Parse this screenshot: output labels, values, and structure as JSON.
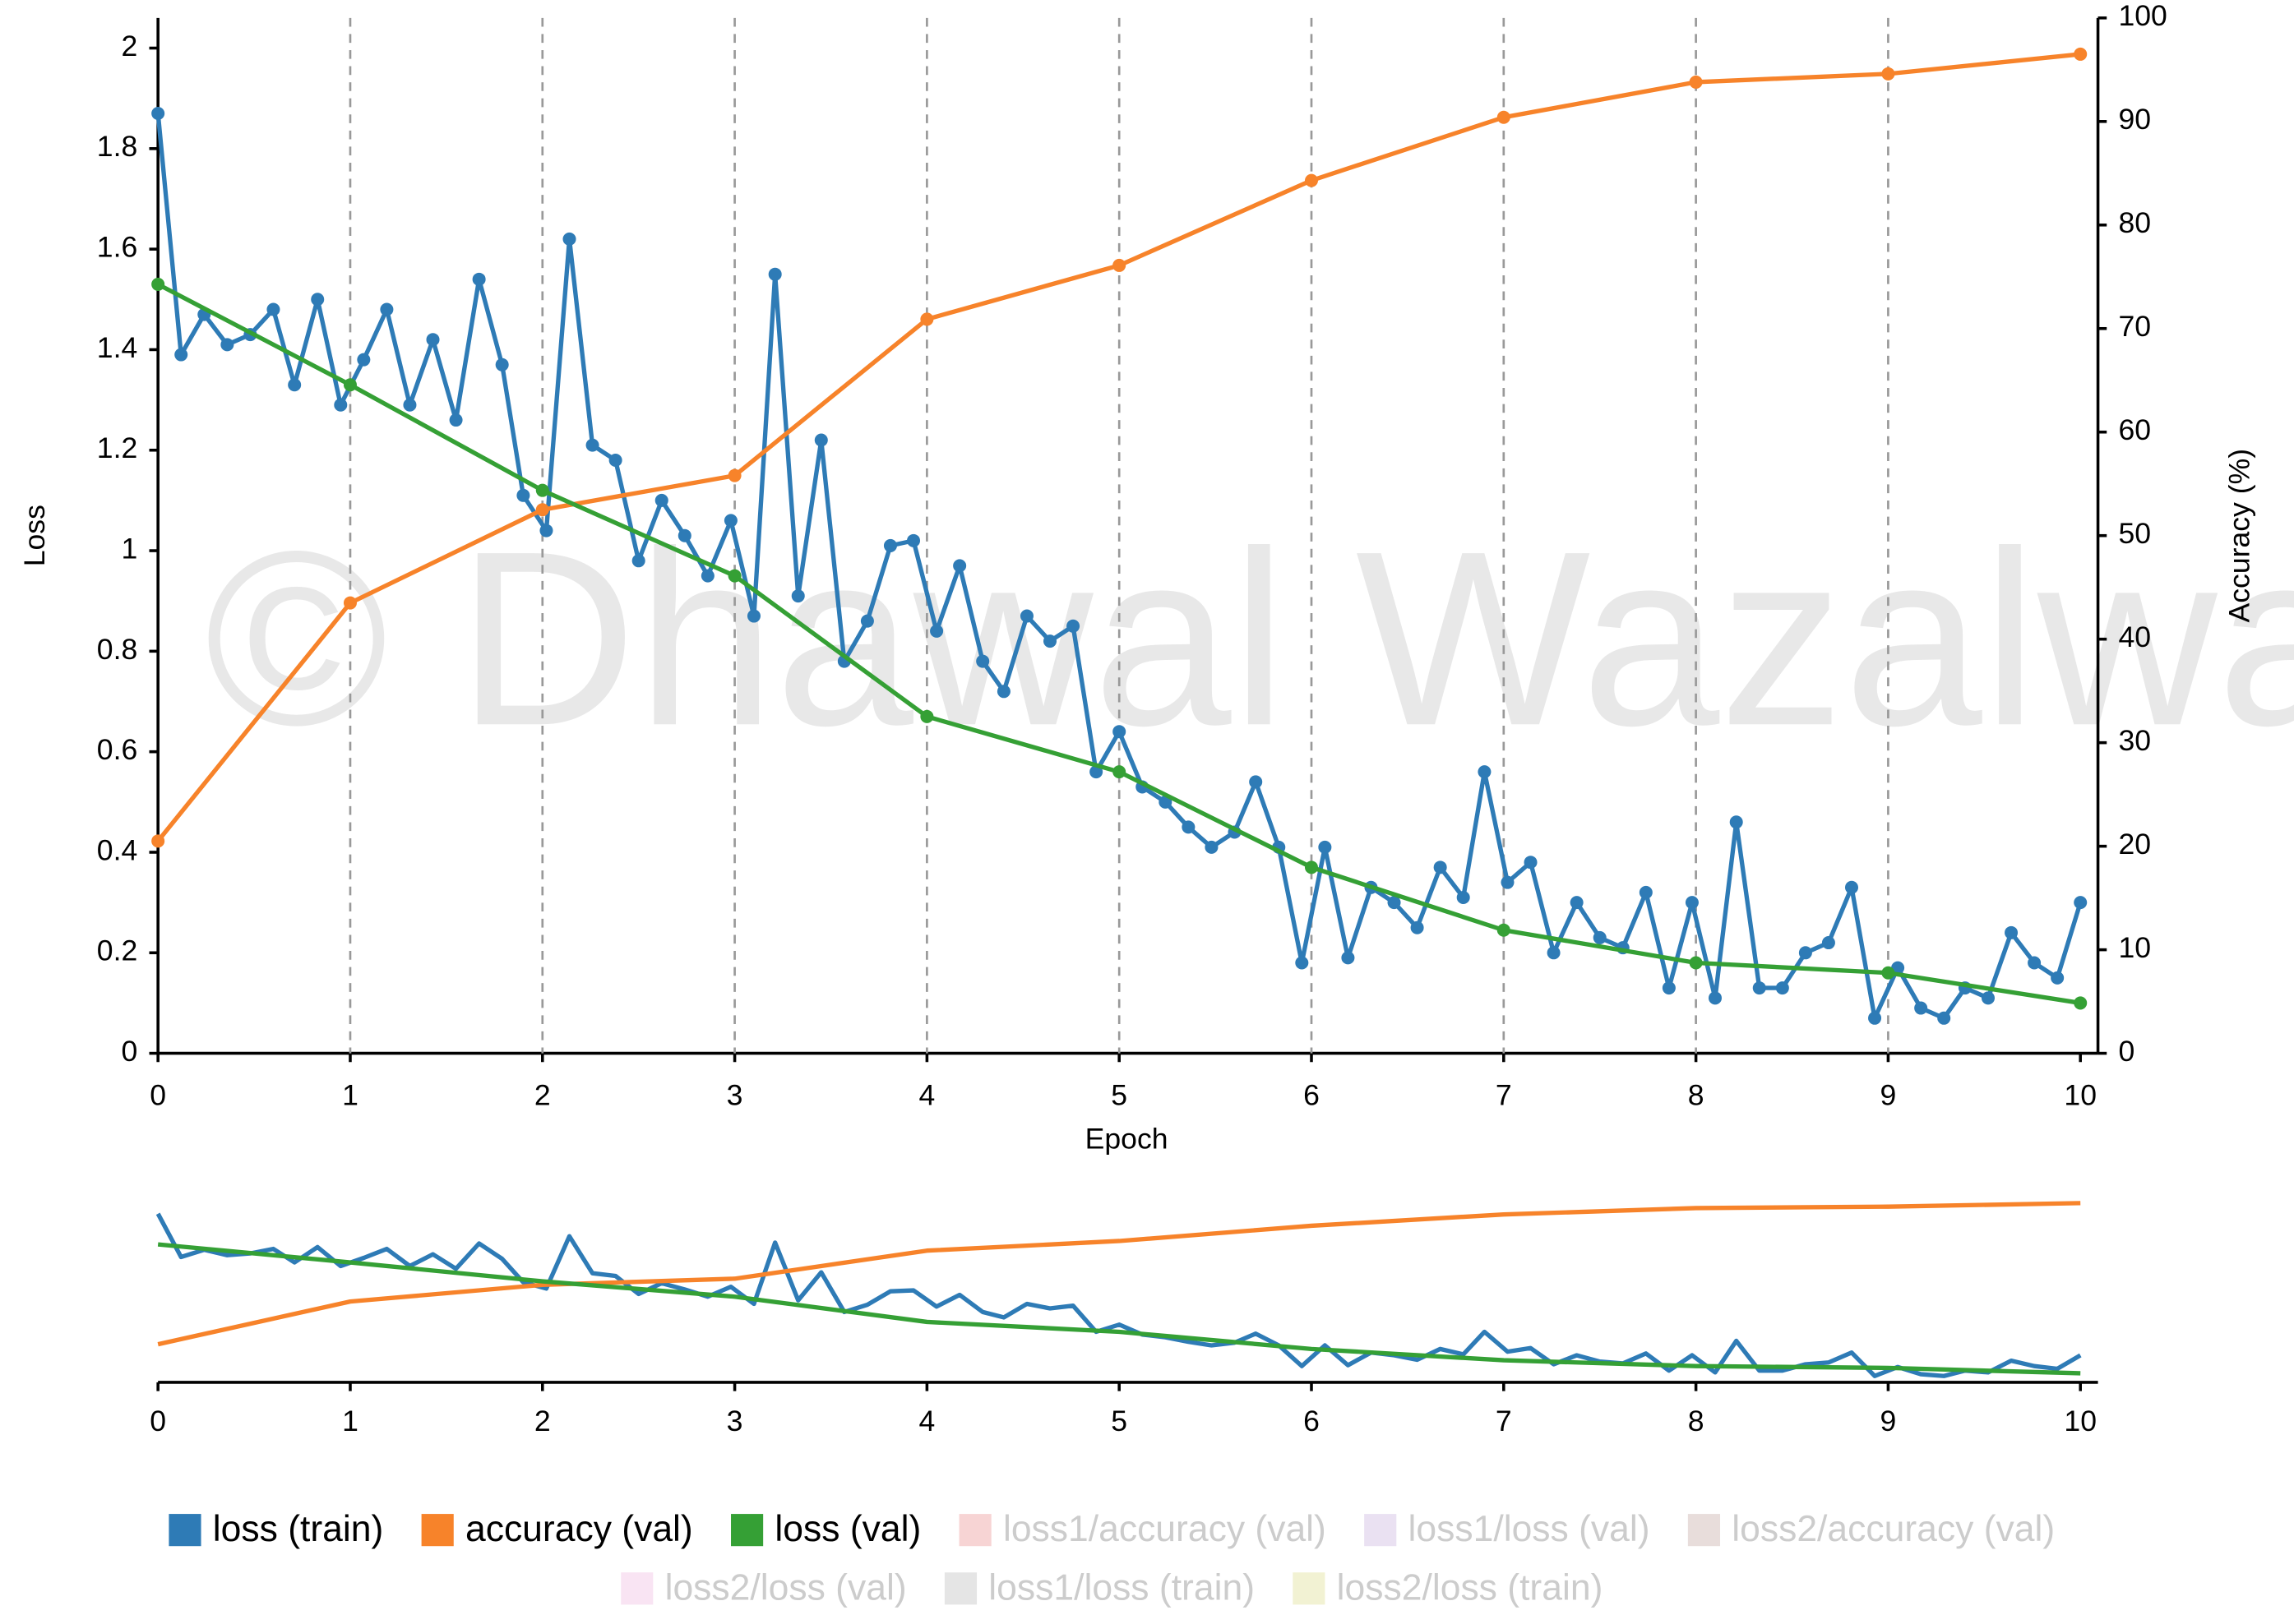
{
  "chart_data": {
    "type": "line",
    "watermark": "© Dhawal Wazalwar",
    "xlabel": "Epoch",
    "ylabel": "Loss",
    "y2label": "Accuracy (%)",
    "x": [
      0,
      1,
      2,
      3,
      4,
      5,
      6,
      7,
      8,
      9,
      10
    ],
    "xlim": [
      0,
      10
    ],
    "xticks": [
      0,
      1,
      2,
      3,
      4,
      5,
      6,
      7,
      8,
      9,
      10
    ],
    "ylim": [
      0,
      2.06
    ],
    "yticks": [
      0,
      0.2,
      0.4,
      0.6,
      0.8,
      1,
      1.2,
      1.4,
      1.6,
      1.8,
      2
    ],
    "y2lim": [
      0,
      100
    ],
    "y2ticks": [
      0,
      10,
      20,
      30,
      40,
      50,
      60,
      70,
      80,
      90,
      100
    ],
    "grid": "x",
    "series": [
      {
        "name": "loss (train)",
        "color": "#2e7bb6",
        "x": [
          0,
          0.12,
          0.24,
          0.36,
          0.48,
          0.6,
          0.71,
          0.83,
          0.95,
          1.07,
          1.19,
          1.31,
          1.43,
          1.55,
          1.67,
          1.79,
          1.9,
          2.02,
          2.14,
          2.26,
          2.38,
          2.5,
          2.62,
          2.74,
          2.86,
          2.98,
          3.1,
          3.21,
          3.33,
          3.45,
          3.57,
          3.69,
          3.81,
          3.93,
          4.05,
          4.17,
          4.29,
          4.4,
          4.52,
          4.64,
          4.76,
          4.88,
          5,
          5.12,
          5.24,
          5.36,
          5.48,
          5.6,
          5.71,
          5.83,
          5.95,
          6.07,
          6.19,
          6.31,
          6.43,
          6.55,
          6.67,
          6.79,
          6.9,
          7.02,
          7.14,
          7.26,
          7.38,
          7.5,
          7.62,
          7.74,
          7.86,
          7.98,
          8.1,
          8.21,
          8.33,
          8.45,
          8.57,
          8.69,
          8.81,
          8.93,
          9.05,
          9.17,
          9.29,
          9.4,
          9.52,
          9.64,
          9.76,
          9.88,
          10
        ],
        "values": [
          1.87,
          1.39,
          1.47,
          1.41,
          1.43,
          1.48,
          1.33,
          1.5,
          1.29,
          1.38,
          1.48,
          1.29,
          1.42,
          1.26,
          1.54,
          1.37,
          1.11,
          1.04,
          1.62,
          1.21,
          1.18,
          0.98,
          1.1,
          1.03,
          0.95,
          1.06,
          0.87,
          1.55,
          0.91,
          1.22,
          0.78,
          0.86,
          1.01,
          1.02,
          0.84,
          0.97,
          0.78,
          0.72,
          0.87,
          0.82,
          0.85,
          0.56,
          0.64,
          0.53,
          0.5,
          0.45,
          0.41,
          0.44,
          0.54,
          0.41,
          0.18,
          0.41,
          0.19,
          0.33,
          0.3,
          0.25,
          0.37,
          0.31,
          0.56,
          0.34,
          0.38,
          0.2,
          0.3,
          0.23,
          0.21,
          0.32,
          0.13,
          0.3,
          0.11,
          0.46,
          0.13,
          0.13,
          0.2,
          0.22,
          0.33,
          0.07,
          0.17,
          0.09,
          0.07,
          0.13,
          0.11,
          0.24,
          0.18,
          0.15,
          0.3
        ]
      },
      {
        "name": "accuracy (val)",
        "color": "#f7832a",
        "axis": "y2",
        "values": [
          20.5,
          43.5,
          52.5,
          55.8,
          70.9,
          76.1,
          84.3,
          90.4,
          93.8,
          94.6,
          96.5
        ]
      },
      {
        "name": "loss (val)",
        "color": "#35a035",
        "values": [
          1.53,
          1.33,
          1.12,
          0.95,
          0.67,
          0.56,
          0.37,
          0.245,
          0.18,
          0.16,
          0.1
        ]
      }
    ],
    "inactive_series": [
      {
        "name": "loss1/accuracy (val)",
        "color": "#d62728"
      },
      {
        "name": "loss1/loss (val)",
        "color": "#9467bd"
      },
      {
        "name": "loss2/accuracy (val)",
        "color": "#8c564b"
      },
      {
        "name": "loss2/loss (val)",
        "color": "#e377c2"
      },
      {
        "name": "loss1/loss (train)",
        "color": "#7f7f7f"
      },
      {
        "name": "loss2/loss (train)",
        "color": "#bcbd22"
      }
    ]
  }
}
